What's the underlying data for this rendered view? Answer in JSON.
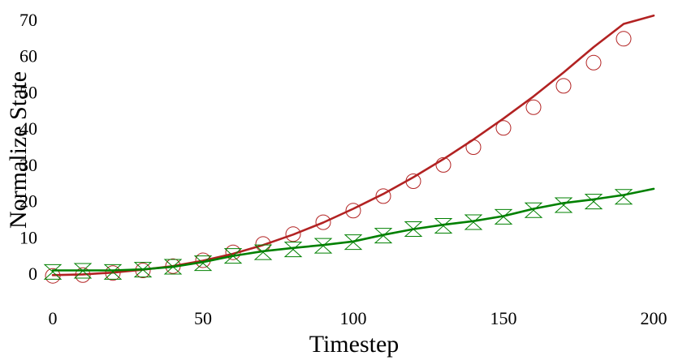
{
  "chart_data": {
    "type": "line",
    "title": "",
    "xlabel": "Timestep",
    "ylabel": "Normalize State",
    "xlim": [
      0,
      200
    ],
    "ylim": [
      -5,
      72
    ],
    "xticks": [
      0,
      50,
      100,
      150,
      200
    ],
    "yticks": [
      0,
      10,
      20,
      30,
      40,
      50,
      60,
      70
    ],
    "grid": false,
    "legend": "none",
    "series": [
      {
        "color": "#b22222",
        "marker": "circle",
        "line_x": [
          0,
          10,
          20,
          30,
          40,
          50,
          60,
          70,
          80,
          90,
          100,
          110,
          120,
          130,
          140,
          150,
          160,
          170,
          180,
          190,
          200
        ],
        "line_y": [
          -0.3,
          -0.1,
          0.4,
          1.2,
          2.2,
          3.7,
          5.6,
          8.0,
          10.9,
          14.2,
          18.0,
          22.1,
          26.7,
          31.7,
          37.1,
          42.9,
          49.0,
          55.6,
          62.6,
          69.0,
          71.3
        ],
        "marker_x": [
          0,
          10,
          20,
          30,
          40,
          50,
          60,
          70,
          80,
          90,
          100,
          110,
          120,
          130,
          140,
          150,
          160,
          170,
          180,
          190
        ],
        "marker_y": [
          -0.5,
          -0.3,
          0.3,
          1.0,
          2.2,
          3.8,
          6.0,
          8.3,
          11.0,
          14.3,
          17.5,
          21.5,
          25.6,
          30.1,
          35.0,
          40.3,
          46.0,
          51.9,
          58.3,
          64.9
        ]
      },
      {
        "color": "#008000",
        "marker": "hourglass",
        "line_x": [
          0,
          10,
          20,
          30,
          40,
          50,
          60,
          70,
          80,
          90,
          100,
          110,
          120,
          130,
          140,
          150,
          160,
          170,
          180,
          190,
          200
        ],
        "line_y": [
          1.0,
          1.0,
          1.0,
          1.3,
          2.0,
          3.3,
          5.0,
          6.3,
          7.2,
          8.0,
          9.0,
          10.8,
          12.4,
          13.6,
          14.6,
          16.0,
          18.0,
          19.6,
          20.6,
          21.8,
          23.5
        ],
        "marker_x": [
          0,
          10,
          20,
          30,
          40,
          50,
          60,
          70,
          80,
          90,
          100,
          110,
          120,
          130,
          140,
          150,
          160,
          170,
          180,
          190
        ],
        "marker_y": [
          0.6,
          0.9,
          0.6,
          1.2,
          2.0,
          3.0,
          5.0,
          6.0,
          6.8,
          7.8,
          8.8,
          10.6,
          12.4,
          13.3,
          14.3,
          15.8,
          17.6,
          19.0,
          20.0,
          21.3
        ]
      }
    ]
  }
}
